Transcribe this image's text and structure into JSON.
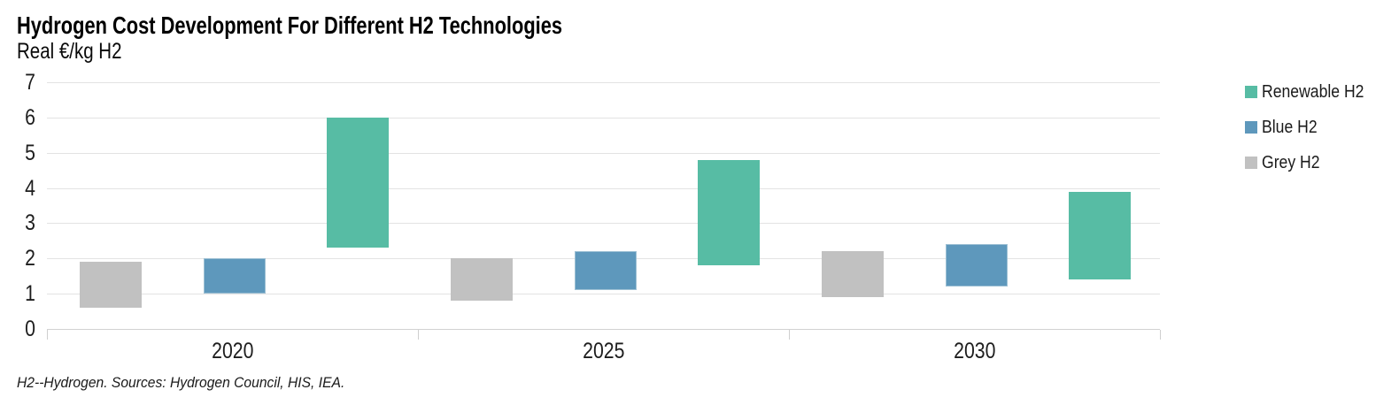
{
  "header": {
    "title": "Hydrogen Cost Development For Different H2 Technologies",
    "subtitle": "Real €/kg H2"
  },
  "chart_data": {
    "type": "bar",
    "variant": "floating-range-columns",
    "title": "Hydrogen Cost Development For Different H2 Technologies",
    "xlabel": "",
    "ylabel": "Real €/kg H2",
    "categories": [
      "2020",
      "2025",
      "2030"
    ],
    "series": [
      {
        "name": "Renewable H2",
        "color": "#57BCA4",
        "ranges": [
          [
            2.3,
            6.0
          ],
          [
            1.8,
            4.8
          ],
          [
            1.4,
            3.9
          ]
        ]
      },
      {
        "name": "Blue H2",
        "color": "#5E98BC",
        "stroke": "#9DC0D4",
        "ranges": [
          [
            1.0,
            2.0
          ],
          [
            1.1,
            2.2
          ],
          [
            1.2,
            2.4
          ]
        ]
      },
      {
        "name": "Grey H2",
        "color": "#C1C1C1",
        "ranges": [
          [
            0.6,
            1.9
          ],
          [
            0.8,
            2.0
          ],
          [
            0.9,
            2.2
          ]
        ]
      }
    ],
    "bar_order_left_to_right": [
      "Grey H2",
      "Blue H2",
      "Renewable H2"
    ],
    "ylim": [
      0,
      7
    ],
    "ytick_step": 1,
    "yticks": [
      "0",
      "1",
      "2",
      "3",
      "4",
      "5",
      "6",
      "7"
    ],
    "grid": "horizontal",
    "gridline_color": "#E3E3E3",
    "legend_position": "right"
  },
  "footer": {
    "note": "H2--Hydrogen. Sources: Hydrogen Council, HIS, IEA."
  }
}
